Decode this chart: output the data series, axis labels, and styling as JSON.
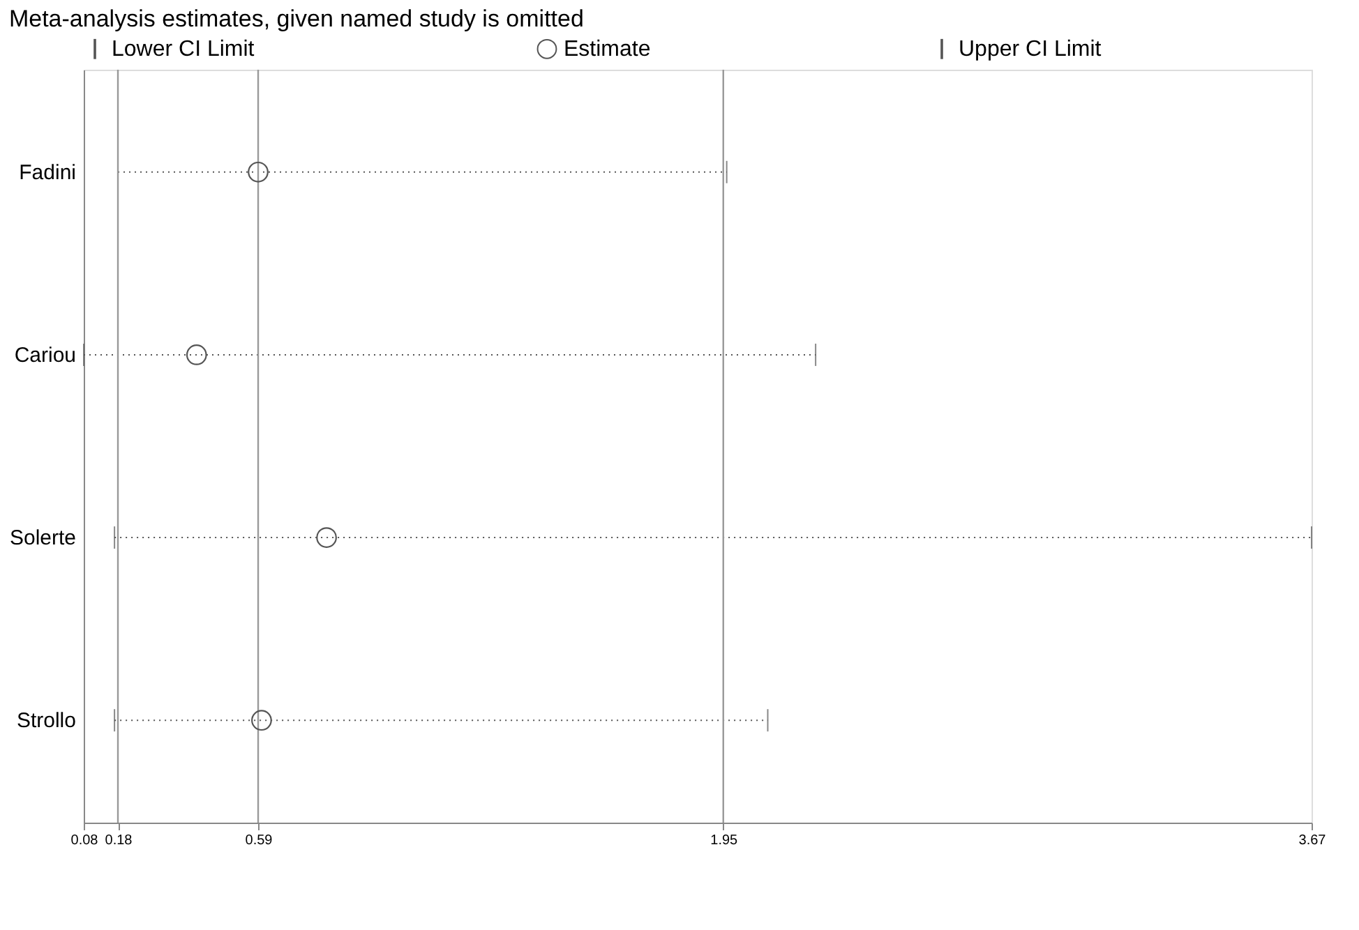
{
  "chart_data": {
    "type": "scatter",
    "title": "Meta-analysis estimates, given named study is omitted",
    "orientation": "horizontal",
    "categories": [
      "Fadini",
      "Cariou",
      "Solerte",
      "Strollo"
    ],
    "series": [
      {
        "name": "Estimate",
        "color": "#555555",
        "marker": "circle",
        "values": [
          0.59,
          0.41,
          0.79,
          0.6
        ],
        "errors": [
          [
            0.18,
            1.96
          ],
          [
            0.08,
            2.22
          ],
          [
            0.17,
            3.67
          ],
          [
            0.17,
            2.08
          ]
        ]
      }
    ],
    "annotations": [
      "Lower CI Limit",
      "Upper CI Limit"
    ],
    "line_style": "dotted",
    "xlim": [
      0.08,
      3.67
    ],
    "xticks": [
      0.08,
      0.18,
      0.59,
      1.95,
      3.67
    ],
    "ref_lines": [
      {
        "axis": "x",
        "value": 0.18,
        "color": "#999999"
      },
      {
        "axis": "x",
        "value": 0.59,
        "color": "#999999"
      },
      {
        "axis": "x",
        "value": 1.95,
        "color": "#999999"
      }
    ],
    "grid": false,
    "legend": "top"
  }
}
